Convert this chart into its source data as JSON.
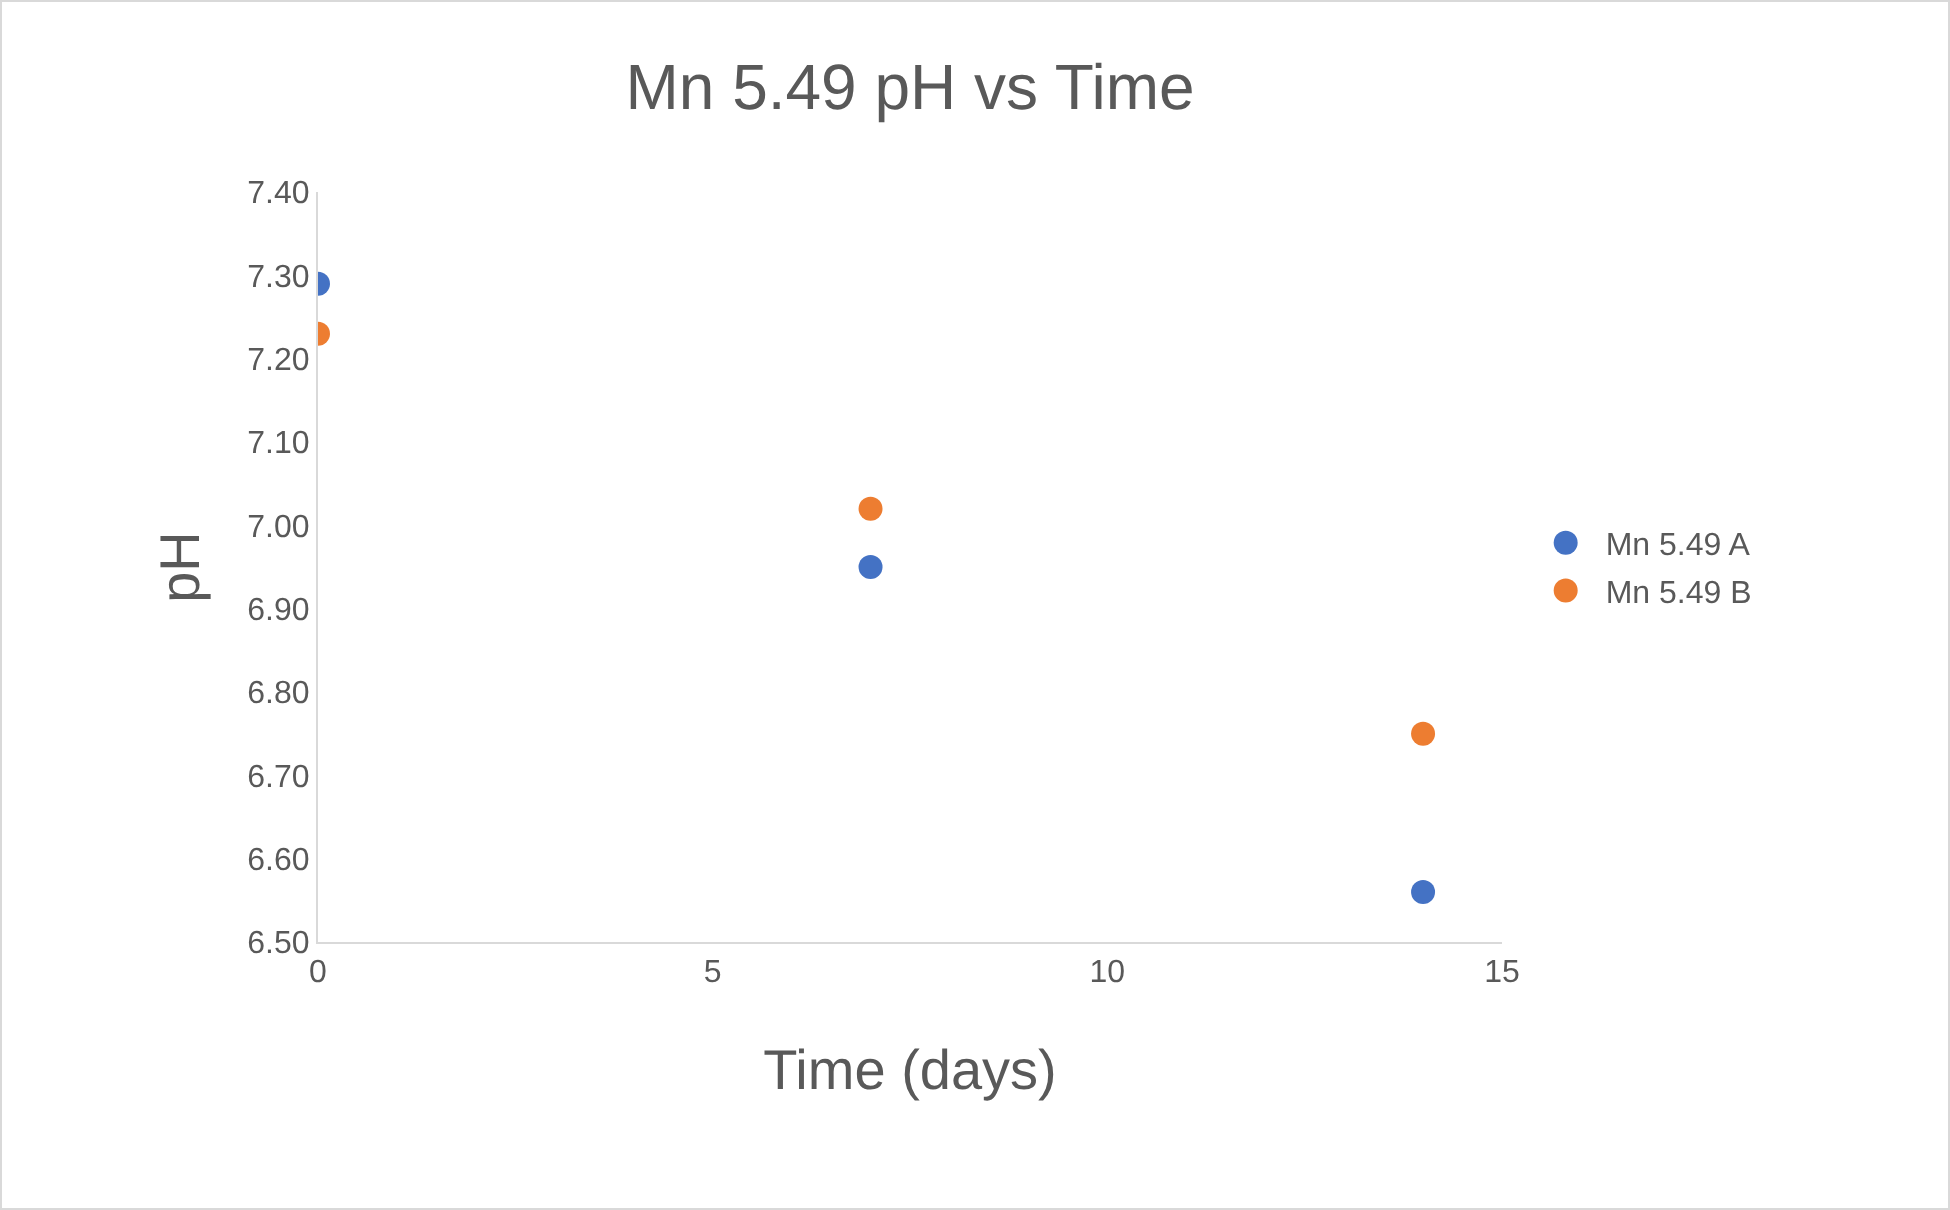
{
  "chart_data": {
    "type": "scatter",
    "title": "Mn 5.49 pH vs Time",
    "xlabel": "Time (days)",
    "ylabel": "pH",
    "x": [
      0,
      7,
      14
    ],
    "series": [
      {
        "name": "Mn 5.49 A",
        "color": "#4472c4",
        "values": [
          7.29,
          6.95,
          6.56
        ]
      },
      {
        "name": "Mn 5.49 B",
        "color": "#ed7d31",
        "values": [
          7.23,
          7.02,
          6.75
        ]
      }
    ],
    "xlim": [
      0,
      15
    ],
    "xticks": [
      0,
      5,
      10,
      15
    ],
    "ylim": [
      6.5,
      7.4
    ],
    "yticks": [
      {
        "value": 6.5,
        "label": "6.50"
      },
      {
        "value": 6.6,
        "label": "6.60"
      },
      {
        "value": 6.7,
        "label": "6.70"
      },
      {
        "value": 6.8,
        "label": "6.80"
      },
      {
        "value": 6.9,
        "label": "6.90"
      },
      {
        "value": 7.0,
        "label": "7.00"
      },
      {
        "value": 7.1,
        "label": "7.10"
      },
      {
        "value": 7.2,
        "label": "7.20"
      },
      {
        "value": 7.3,
        "label": "7.30"
      },
      {
        "value": 7.4,
        "label": "7.40"
      }
    ],
    "grid": false,
    "legend": "right",
    "marker": "circle"
  }
}
